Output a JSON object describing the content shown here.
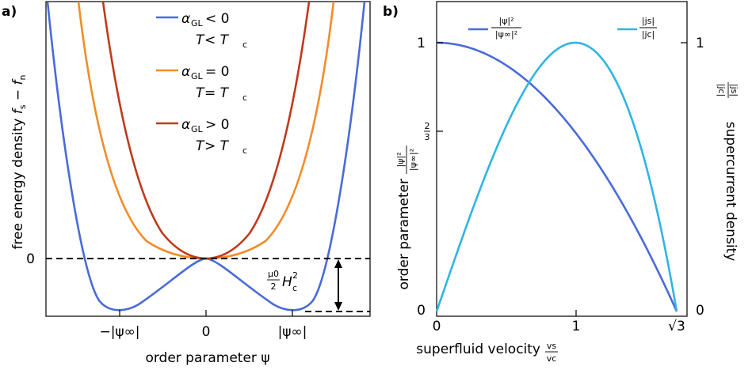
{
  "chart_data": [
    {
      "panel_label": "a)",
      "type": "line",
      "xlabel": "order parameter ψ",
      "ylabel": "free energy density f_s − f_n",
      "xticks": [
        "−|ψ∞|",
        "0",
        "|ψ∞|"
      ],
      "yticks": [
        "0"
      ],
      "xlim": [
        -1.6,
        1.6
      ],
      "ylim": [
        -0.35,
        1.6
      ],
      "legend_placement": "top-center",
      "series": [
        {
          "name": "αGL < 0, T < Tc",
          "color": "#4a6bd9",
          "x": [
            -1.6,
            -1.2,
            -1.0,
            -0.8,
            -0.5,
            0,
            0.5,
            0.8,
            1.0,
            1.2,
            1.6
          ],
          "y": [
            1.6,
            0.1,
            -0.3,
            -0.2,
            -0.12,
            0,
            -0.12,
            -0.2,
            -0.3,
            0.1,
            1.6
          ]
        },
        {
          "name": "αGL = 0, T = Tc",
          "color": "#f28c28",
          "x": [
            -1.25,
            -1.0,
            -0.5,
            0,
            0.5,
            1.0,
            1.25
          ],
          "y": [
            1.6,
            0.65,
            0.04,
            0,
            0.04,
            0.65,
            1.6
          ]
        },
        {
          "name": "αGL > 0, T > Tc",
          "color": "#c0391b",
          "x": [
            -1.05,
            -0.8,
            -0.4,
            0,
            0.4,
            0.8,
            1.05
          ],
          "y": [
            1.6,
            0.9,
            0.18,
            0,
            0.18,
            0.9,
            1.6
          ]
        }
      ],
      "annotations": {
        "condensation_energy": "μ0/2 Hc²"
      },
      "legend": [
        {
          "line1_prefix": "α",
          "line1_sub": "GL",
          "line1_rel": " < 0",
          "line2_pre": "T",
          "line2_rel": " < T",
          "line2_sub": "c"
        },
        {
          "line1_prefix": "α",
          "line1_sub": "GL",
          "line1_rel": " = 0",
          "line2_pre": "T",
          "line2_rel": " = T",
          "line2_sub": "c"
        },
        {
          "line1_prefix": "α",
          "line1_sub": "GL",
          "line1_rel": " > 0",
          "line2_pre": "T",
          "line2_rel": " > T",
          "line2_sub": "c"
        }
      ],
      "text": {
        "x_axis_label": "order parameter ψ",
        "y_axis_label_pre": "free energy density ",
        "y_axis_label_f": "f",
        "y_axis_label_s": "s",
        "y_axis_label_minus": " − ",
        "y_axis_label_n": "n",
        "zero_label": "0",
        "tick_neg": "−|ψ∞|",
        "tick_zero": "0",
        "tick_pos": "|ψ∞|",
        "energy_num": "μ0",
        "energy_den": "2",
        "energy_H": "H",
        "energy_sub": "c",
        "energy_sup": "2"
      }
    },
    {
      "panel_label": "b)",
      "type": "line",
      "xlabel": "superfluid velocity vs/vc",
      "ylabel_left": "order parameter |ψ|²/|ψ∞|²",
      "ylabel_right": "supercurrent density |js|/|jc|",
      "xticks": [
        "0",
        "1",
        "√3"
      ],
      "yticks_left": [
        "0",
        "2/3",
        "1"
      ],
      "yticks_right": [
        "0",
        "1"
      ],
      "xlim": [
        0,
        1.7320508
      ],
      "ylim_left": [
        0,
        1
      ],
      "ylim_right": [
        0,
        1
      ],
      "legend_placement": "top",
      "series": [
        {
          "name": "|ψ|²/|ψ∞|²",
          "color": "#4a6bd9",
          "x": [
            0,
            0.25,
            0.5,
            0.75,
            1.0,
            1.25,
            1.5,
            1.7320508
          ],
          "y": [
            1.0,
            0.979,
            0.917,
            0.813,
            0.667,
            0.479,
            0.25,
            0.0
          ]
        },
        {
          "name": "|js|/|jc|",
          "color": "#30b4e3",
          "x": [
            0,
            0.25,
            0.5,
            0.75,
            1.0,
            1.25,
            1.5,
            1.7320508
          ],
          "y": [
            0.0,
            0.367,
            0.688,
            0.914,
            1.0,
            0.898,
            0.563,
            0.0
          ]
        }
      ],
      "text": {
        "x_axis_label": "superfluid velocity",
        "x_frac_num": "vs",
        "x_frac_den": "vc",
        "y_left_label": "order parameter",
        "y_right_label": "supercurrent density",
        "tick_x0": "0",
        "tick_x1": "1",
        "tick_x2": "√3",
        "tick_yl0": "0",
        "tick_yl23_num": "2",
        "tick_yl23_den": "3",
        "tick_yl1": "1",
        "tick_yr0": "0",
        "tick_yr1": "1",
        "legend1_num": "|ψ|²",
        "legend1_den": "|ψ∞|²",
        "legend2_num": "|js|",
        "legend2_den": "|jc|"
      }
    }
  ]
}
